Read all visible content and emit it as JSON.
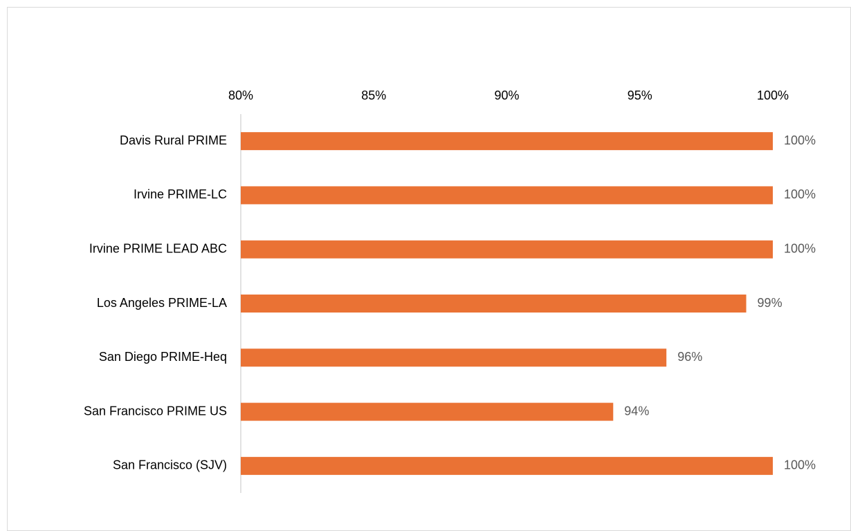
{
  "chart_data": {
    "type": "bar",
    "orientation": "horizontal",
    "categories": [
      "Davis Rural PRIME",
      "Irvine PRIME-LC",
      "Irvine PRIME LEAD ABC",
      "Los Angeles PRIME-LA",
      "San Diego PRIME-Heq",
      "San Francisco PRIME US",
      "San Francisco (SJV)"
    ],
    "values": [
      100,
      100,
      100,
      99,
      96,
      94,
      100
    ],
    "value_labels": [
      "100%",
      "100%",
      "100%",
      "99%",
      "96%",
      "94%",
      "100%"
    ],
    "color": "#ea7234",
    "xlim": [
      80,
      100
    ],
    "xticks": [
      {
        "value": 80,
        "label": "80%"
      },
      {
        "value": 85,
        "label": "85%"
      },
      {
        "value": 90,
        "label": "90%"
      },
      {
        "value": 95,
        "label": "95%"
      },
      {
        "value": 100,
        "label": "100%"
      }
    ],
    "grid": false
  }
}
